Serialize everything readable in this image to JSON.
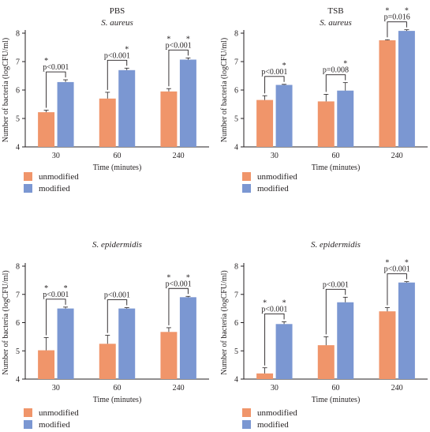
{
  "colors": {
    "unmodified": "#f0956a",
    "modified": "#7b97d2",
    "text": "#231f20"
  },
  "chart_data": [
    {
      "type": "bar",
      "title": "PBS",
      "subtitle": "S. aureus",
      "xlabel": "Time (minutes)",
      "ylabel": "Number of bacteria (logCFU/ml)",
      "ylim": [
        4,
        8
      ],
      "yticks": [
        4,
        5,
        6,
        7,
        8
      ],
      "categories": [
        "30",
        "60",
        "240"
      ],
      "series": [
        {
          "name": "unmodified",
          "values": [
            5.22,
            5.7,
            5.95
          ],
          "errors": [
            0.07,
            0.22,
            0.1
          ]
        },
        {
          "name": "modified",
          "values": [
            6.28,
            6.7,
            7.07
          ],
          "errors": [
            0.08,
            0.07,
            0.06
          ]
        }
      ],
      "stars": [
        [
          true,
          false
        ],
        [
          false,
          true
        ],
        [
          true,
          true
        ]
      ],
      "pvalues": [
        "p<0.001",
        "p<0.001",
        "p<0.001"
      ],
      "legend": [
        "unmodified",
        "modified"
      ],
      "legend_position": "bottom"
    },
    {
      "type": "bar",
      "title": "TSB",
      "subtitle": "S. aureus",
      "xlabel": "Time (minutes)",
      "ylabel": "Number of bacteria (logCFU/ml)",
      "ylim": [
        4,
        8
      ],
      "yticks": [
        4,
        5,
        6,
        7,
        8
      ],
      "categories": [
        "30",
        "60",
        "240"
      ],
      "series": [
        {
          "name": "unmodified",
          "values": [
            5.65,
            5.6,
            7.75
          ],
          "errors": [
            0.15,
            0.25,
            0.02
          ]
        },
        {
          "name": "modified",
          "values": [
            6.18,
            5.98,
            8.08
          ],
          "errors": [
            0.02,
            0.28,
            0.04
          ]
        }
      ],
      "stars": [
        [
          false,
          true
        ],
        [
          false,
          true
        ],
        [
          true,
          true
        ]
      ],
      "pvalues": [
        "p<0.001",
        "p=0.008",
        "p=0.016"
      ],
      "legend": [
        "unmodified",
        "modified"
      ],
      "legend_position": "bottom"
    },
    {
      "type": "bar",
      "title": "",
      "subtitle": "S. epidermidis",
      "xlabel": "Time (minutes)",
      "ylabel": "Number of bacteria (logCFU/ml)",
      "ylim": [
        4,
        8
      ],
      "yticks": [
        4,
        5,
        6,
        7,
        8
      ],
      "categories": [
        "30",
        "60",
        "240"
      ],
      "series": [
        {
          "name": "unmodified",
          "values": [
            5.02,
            5.25,
            5.67
          ],
          "errors": [
            0.45,
            0.3,
            0.15
          ]
        },
        {
          "name": "modified",
          "values": [
            6.5,
            6.5,
            6.9
          ],
          "errors": [
            0.05,
            0.03,
            0.03
          ]
        }
      ],
      "stars": [
        [
          true,
          true
        ],
        [
          false,
          false
        ],
        [
          true,
          true
        ]
      ],
      "pvalues": [
        "p<0.001",
        "p<0.001",
        "p<0.001"
      ],
      "legend": [
        "unmodified",
        "modified"
      ],
      "legend_position": "bottom"
    },
    {
      "type": "bar",
      "title": "",
      "subtitle": "S. epidermidis",
      "xlabel": "Time (minutes)",
      "ylabel": "Number of bacteria (logCFU/ml)",
      "ylim": [
        4,
        8
      ],
      "yticks": [
        4,
        5,
        6,
        7,
        8
      ],
      "categories": [
        "30",
        "60",
        "240"
      ],
      "series": [
        {
          "name": "unmodified",
          "values": [
            4.2,
            5.2,
            6.4
          ],
          "errors": [
            0.2,
            0.3,
            0.13
          ]
        },
        {
          "name": "modified",
          "values": [
            5.95,
            6.72,
            7.42
          ],
          "errors": [
            0.08,
            0.18,
            0.03
          ]
        }
      ],
      "stars": [
        [
          true,
          true
        ],
        [
          false,
          false
        ],
        [
          true,
          true
        ]
      ],
      "pvalues": [
        "p<0.001",
        "p<0.001",
        "p<0.001"
      ],
      "legend": [
        "unmodified",
        "modified"
      ],
      "legend_position": "bottom"
    }
  ]
}
